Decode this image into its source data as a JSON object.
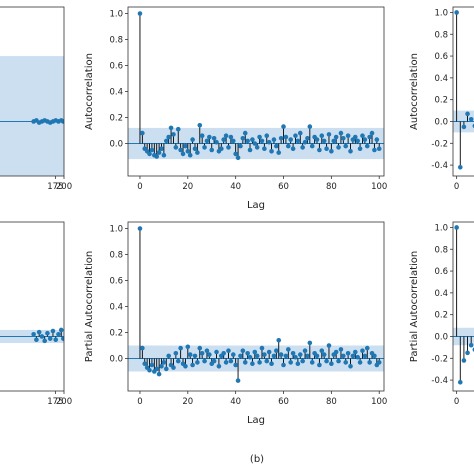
{
  "caption": "(b)",
  "colors": {
    "marker": "#1f77b4",
    "band": "#c6dbef",
    "stem": "#000000",
    "axis": "#333333"
  },
  "chart_data": [
    {
      "id": "left-top",
      "type": "scatter",
      "title": "",
      "xlabel": "",
      "ylabel": "",
      "xlim": [
        0,
        200
      ],
      "ylim": [
        -0.5,
        1.05
      ],
      "xticks": [
        175,
        200
      ],
      "yticks": [],
      "grid": false,
      "confidence_band": {
        "upper": 0.6,
        "lower": -0.6
      },
      "series": [
        {
          "x": [
            112,
            120,
            128,
            136,
            144,
            152,
            160,
            168,
            176,
            184,
            192,
            198
          ],
          "y": [
            0.0,
            0.01,
            -0.01,
            0.0,
            0.01,
            0.0,
            -0.01,
            0.0,
            0.01,
            0.0,
            0.01,
            0.0
          ]
        }
      ]
    },
    {
      "id": "center-top",
      "type": "scatter",
      "title": "",
      "xlabel": "Lag",
      "ylabel": "Autocorrelation",
      "xlim": [
        -5,
        102
      ],
      "ylim": [
        -0.25,
        1.05
      ],
      "xticks": [
        0,
        20,
        40,
        60,
        80,
        100
      ],
      "yticks": [
        0.0,
        0.2,
        0.4,
        0.6,
        0.8,
        1.0
      ],
      "grid": false,
      "confidence_band": {
        "upper": 0.12,
        "lower": -0.12
      },
      "series": [
        {
          "x": [
            0,
            1,
            2,
            3,
            4,
            5,
            6,
            7,
            8,
            9,
            10,
            11,
            12,
            13,
            14,
            15,
            16,
            17,
            18,
            19,
            20,
            21,
            22,
            23,
            24,
            25,
            26,
            27,
            28,
            29,
            30,
            31,
            32,
            33,
            34,
            35,
            36,
            37,
            38,
            39,
            40,
            41,
            42,
            43,
            44,
            45,
            46,
            47,
            48,
            49,
            50,
            51,
            52,
            53,
            54,
            55,
            56,
            57,
            58,
            59,
            60,
            61,
            62,
            63,
            64,
            65,
            66,
            67,
            68,
            69,
            70,
            71,
            72,
            73,
            74,
            75,
            76,
            77,
            78,
            79,
            80,
            81,
            82,
            83,
            84,
            85,
            86,
            87,
            88,
            89,
            90,
            91,
            92,
            93,
            94,
            95,
            96,
            97,
            98,
            99,
            100
          ],
          "y": [
            1.0,
            0.08,
            -0.04,
            -0.06,
            -0.08,
            -0.05,
            -0.09,
            -0.1,
            -0.07,
            -0.04,
            -0.09,
            0.02,
            0.05,
            0.12,
            0.07,
            -0.03,
            0.11,
            -0.05,
            -0.08,
            -0.02,
            -0.06,
            -0.09,
            0.03,
            -0.04,
            -0.07,
            0.14,
            0.06,
            -0.03,
            0.02,
            0.05,
            -0.05,
            0.04,
            0.01,
            -0.06,
            -0.04,
            0.03,
            0.06,
            -0.03,
            0.05,
            0.02,
            -0.08,
            -0.11,
            -0.02,
            0.04,
            0.08,
            0.02,
            -0.05,
            0.03,
            0.0,
            -0.03,
            0.05,
            0.02,
            -0.04,
            0.06,
            0.01,
            -0.06,
            0.03,
            -0.02,
            -0.07,
            0.04,
            0.13,
            0.05,
            -0.02,
            0.03,
            -0.04,
            0.06,
            0.02,
            0.08,
            -0.03,
            0.01,
            0.04,
            0.13,
            -0.02,
            0.05,
            0.03,
            -0.05,
            0.06,
            0.02,
            -0.04,
            0.07,
            -0.06,
            0.02,
            0.05,
            -0.03,
            0.08,
            0.04,
            -0.02,
            0.06,
            -0.06,
            0.03,
            0.05,
            0.02,
            -0.04,
            0.06,
            0.03,
            -0.02,
            0.05,
            0.08,
            -0.05,
            0.03,
            -0.04
          ]
        }
      ]
    },
    {
      "id": "right-top",
      "type": "scatter",
      "title": "",
      "xlabel": "",
      "ylabel": "Autocorrelation",
      "xlim": [
        -1,
        10
      ],
      "ylim": [
        -0.5,
        1.05
      ],
      "xticks": [
        0
      ],
      "yticks": [
        -0.4,
        -0.2,
        0.0,
        0.2,
        0.4,
        0.6,
        0.8,
        1.0
      ],
      "grid": false,
      "confidence_band": {
        "upper": 0.1,
        "lower": -0.1
      },
      "series": [
        {
          "x": [
            0,
            1,
            2,
            3,
            4,
            5,
            6,
            7,
            8,
            9
          ],
          "y": [
            1.0,
            -0.42,
            -0.05,
            0.07,
            0.02,
            -0.04,
            0.03,
            -0.02,
            0.01,
            0.0
          ]
        }
      ]
    },
    {
      "id": "left-bottom",
      "type": "scatter",
      "title": "",
      "xlabel": "",
      "ylabel": "",
      "xlim": [
        0,
        200
      ],
      "ylim": [
        -0.5,
        1.05
      ],
      "xticks": [
        175,
        200
      ],
      "yticks": [],
      "grid": false,
      "confidence_band": {
        "upper": 0.06,
        "lower": -0.06
      },
      "series": [
        {
          "x": [
            112,
            120,
            128,
            136,
            144,
            152,
            160,
            168,
            176,
            184,
            192,
            198
          ],
          "y": [
            0.02,
            -0.03,
            0.04,
            0.0,
            -0.04,
            0.03,
            -0.02,
            0.05,
            -0.03,
            0.02,
            0.06,
            -0.02
          ]
        }
      ]
    },
    {
      "id": "center-bottom",
      "type": "scatter",
      "title": "",
      "xlabel": "Lag",
      "ylabel": "Partial Autocorrelation",
      "xlim": [
        -5,
        102
      ],
      "ylim": [
        -0.25,
        1.05
      ],
      "xticks": [
        0,
        20,
        40,
        60,
        80,
        100
      ],
      "yticks": [
        0.0,
        0.2,
        0.4,
        0.6,
        0.8,
        1.0
      ],
      "grid": false,
      "confidence_band": {
        "upper": 0.1,
        "lower": -0.1
      },
      "series": [
        {
          "x": [
            0,
            1,
            2,
            3,
            4,
            5,
            6,
            7,
            8,
            9,
            10,
            11,
            12,
            13,
            14,
            15,
            16,
            17,
            18,
            19,
            20,
            21,
            22,
            23,
            24,
            25,
            26,
            27,
            28,
            29,
            30,
            31,
            32,
            33,
            34,
            35,
            36,
            37,
            38,
            39,
            40,
            41,
            42,
            43,
            44,
            45,
            46,
            47,
            48,
            49,
            50,
            51,
            52,
            53,
            54,
            55,
            56,
            57,
            58,
            59,
            60,
            61,
            62,
            63,
            64,
            65,
            66,
            67,
            68,
            69,
            70,
            71,
            72,
            73,
            74,
            75,
            76,
            77,
            78,
            79,
            80,
            81,
            82,
            83,
            84,
            85,
            86,
            87,
            88,
            89,
            90,
            91,
            92,
            93,
            94,
            95,
            96,
            97,
            98,
            99,
            100
          ],
          "y": [
            1.0,
            0.08,
            -0.04,
            -0.07,
            -0.09,
            -0.05,
            -0.1,
            -0.08,
            -0.12,
            -0.06,
            -0.03,
            -0.08,
            0.02,
            -0.05,
            -0.07,
            0.04,
            -0.02,
            0.08,
            -0.04,
            -0.06,
            0.09,
            0.03,
            -0.05,
            0.02,
            -0.03,
            0.08,
            0.04,
            -0.02,
            0.06,
            0.03,
            -0.04,
            -0.02,
            0.05,
            -0.06,
            0.02,
            0.04,
            -0.03,
            0.06,
            -0.02,
            0.03,
            -0.05,
            -0.17,
            0.02,
            0.06,
            -0.03,
            0.04,
            0.01,
            -0.04,
            0.05,
            0.02,
            -0.03,
            0.08,
            0.03,
            -0.02,
            0.05,
            -0.04,
            0.02,
            0.06,
            0.14,
            0.03,
            -0.05,
            0.02,
            0.07,
            -0.03,
            0.04,
            0.01,
            -0.04,
            0.03,
            -0.02,
            0.06,
            0.02,
            0.12,
            -0.03,
            0.04,
            0.02,
            -0.05,
            0.06,
            0.03,
            -0.02,
            0.1,
            -0.04,
            0.03,
            0.05,
            -0.02,
            0.07,
            0.02,
            -0.03,
            0.04,
            -0.06,
            0.02,
            0.05,
            0.01,
            -0.03,
            0.06,
            0.02,
            0.08,
            -0.03,
            0.04,
            0.02,
            -0.05,
            -0.03
          ]
        }
      ]
    },
    {
      "id": "right-bottom",
      "type": "scatter",
      "title": "",
      "xlabel": "",
      "ylabel": "Partial Autocorrelation",
      "xlim": [
        -1,
        10
      ],
      "ylim": [
        -0.5,
        1.05
      ],
      "xticks": [
        0
      ],
      "yticks": [
        -0.4,
        -0.2,
        0.0,
        0.2,
        0.4,
        0.6,
        0.8,
        1.0
      ],
      "grid": false,
      "confidence_band": {
        "upper": 0.08,
        "lower": -0.08
      },
      "series": [
        {
          "x": [
            0,
            1,
            2,
            3,
            4,
            5,
            6,
            7,
            8,
            9
          ],
          "y": [
            1.0,
            -0.42,
            -0.22,
            -0.15,
            -0.08,
            -0.12,
            -0.05,
            -0.1,
            -0.04,
            -0.06
          ]
        }
      ]
    }
  ]
}
